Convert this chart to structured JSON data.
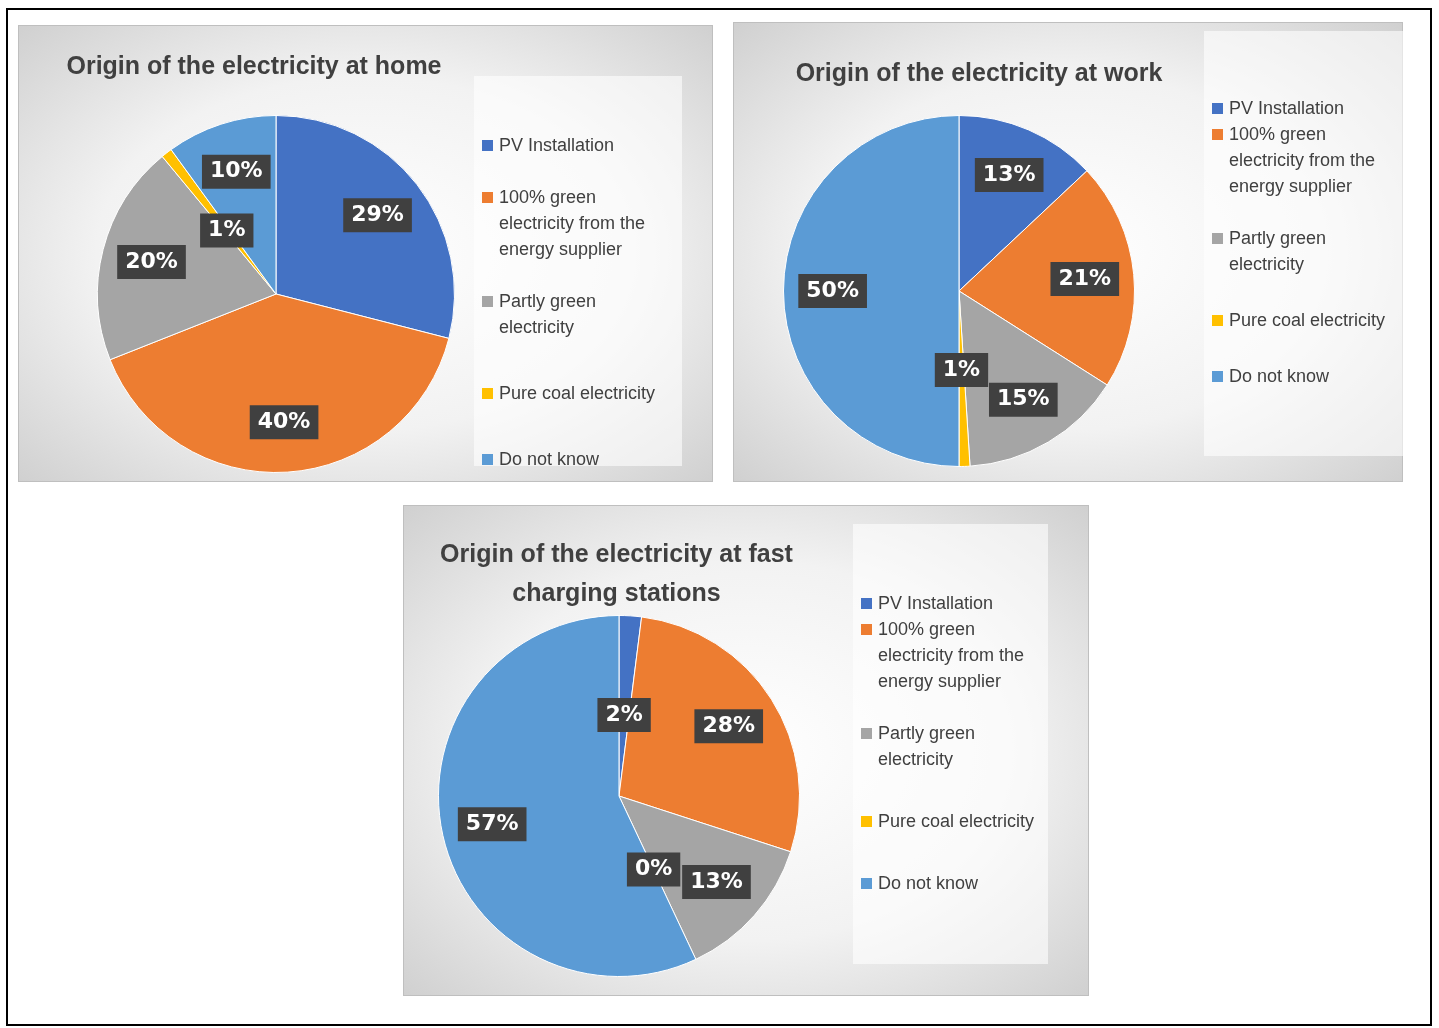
{
  "chart_data": [
    {
      "type": "pie",
      "title": "Origin of the electricity at home",
      "categories": [
        "PV Installation",
        "100% green electricity from the energy supplier",
        "Partly green electricity",
        "Pure coal electricity",
        "Do not know"
      ],
      "values": [
        29,
        40,
        20,
        1,
        10
      ],
      "value_labels": [
        "29%",
        "40%",
        "20%",
        "1%",
        "10%"
      ],
      "colors": [
        "#4472c4",
        "#ed7d31",
        "#a5a5a5",
        "#ffc000",
        "#5b9bd5"
      ],
      "legend": "right"
    },
    {
      "type": "pie",
      "title": "Origin of the electricity at work",
      "categories": [
        "PV Installation",
        "100% green electricity from the energy supplier",
        "Partly green electricity",
        "Pure coal electricity",
        "Do not know"
      ],
      "values": [
        13,
        21,
        15,
        1,
        50
      ],
      "value_labels": [
        "13%",
        "21%",
        "15%",
        "1%",
        "50%"
      ],
      "colors": [
        "#4472c4",
        "#ed7d31",
        "#a5a5a5",
        "#ffc000",
        "#5b9bd5"
      ],
      "legend": "right"
    },
    {
      "type": "pie",
      "title": "Origin of the electricity at fast charging stations",
      "categories": [
        "PV Installation",
        "100% green electricity from the energy supplier",
        "Partly green electricity",
        "Pure coal electricity",
        "Do not know"
      ],
      "values": [
        2,
        28,
        13,
        0,
        57
      ],
      "value_labels": [
        "2%",
        "28%",
        "13%",
        "0%",
        "57%"
      ],
      "colors": [
        "#4472c4",
        "#ed7d31",
        "#a5a5a5",
        "#ffc000",
        "#5b9bd5"
      ],
      "legend": "right"
    }
  ]
}
